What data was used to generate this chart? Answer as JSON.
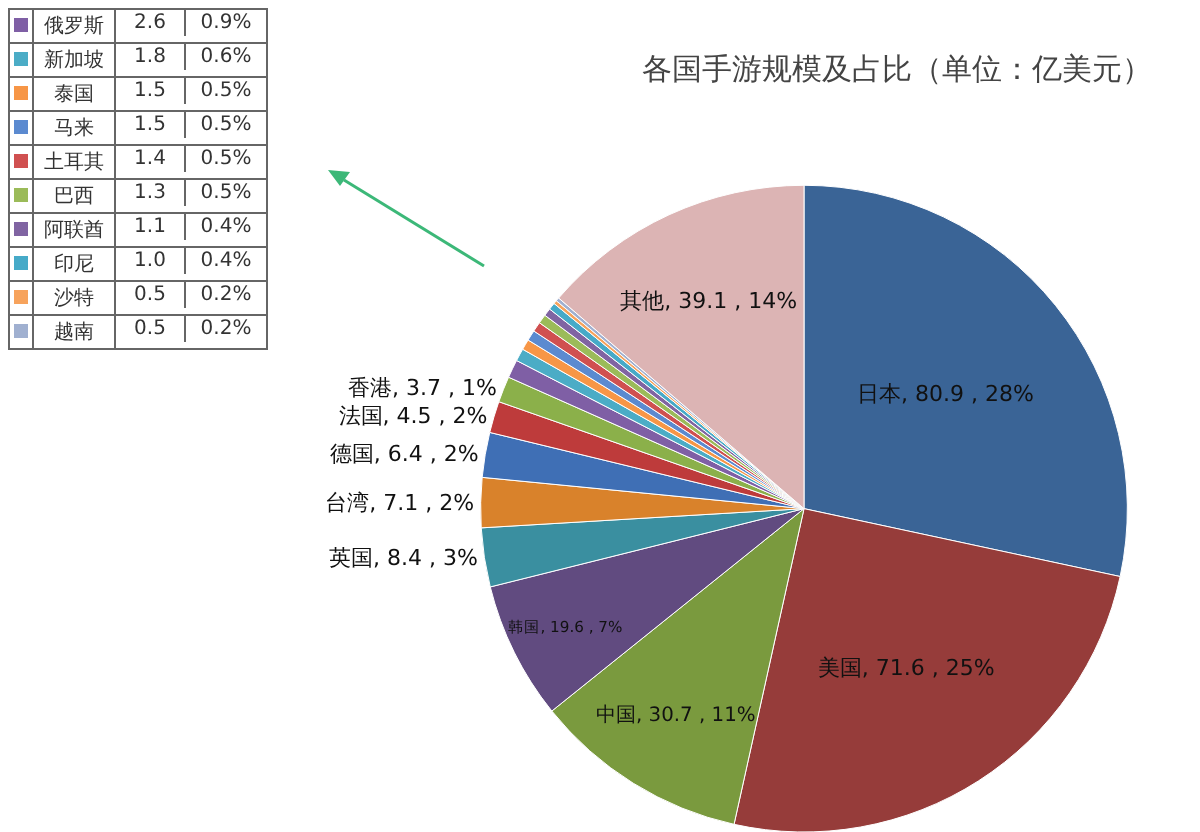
{
  "chart_data": {
    "type": "pie",
    "legend": "top left",
    "title": "各国手游规模及占比（单位：亿美元）",
    "categories": [
      "日本",
      "美国",
      "中国",
      "韩国",
      "英国",
      "台湾",
      "德国",
      "法国",
      "香港",
      "俄罗斯",
      "新加坡",
      "泰国",
      "马来",
      "土耳其",
      "巴西",
      "阿联酋",
      "印尼",
      "沙特",
      "越南",
      "其他"
    ],
    "values": [
      80.9,
      71.6,
      30.7,
      19.6,
      8.4,
      7.1,
      6.4,
      4.5,
      3.7,
      2.6,
      1.8,
      1.5,
      1.5,
      1.4,
      1.3,
      1.1,
      1.0,
      0.5,
      0.5,
      39.1
    ],
    "colors": [
      "#3a6496",
      "#963c3a",
      "#7a9a3e",
      "#614b80",
      "#3a8fa0",
      "#d9822b",
      "#3f6fb5",
      "#be3b3b",
      "#8bb04a",
      "#7f5fa5",
      "#4bacc6",
      "#f79646",
      "#5b8ad0",
      "#d05050",
      "#9bbb59",
      "#8064a2",
      "#46aac8",
      "#f7a35c",
      "#a0b0d0",
      "#dcb4b4"
    ],
    "value_labels": [
      "80.9 , 28%",
      "71.6 , 25%",
      "30.7 , 11%",
      "19.6 , 7%",
      "8.4 , 3%",
      "7.1 , 2%",
      "6.4 , 2%",
      "4.5 , 2%",
      "3.7 , 1%",
      "2.6 0.9%",
      "1.8 0.6%",
      "1.5 0.5%",
      "1.5 0.5%",
      "1.4 0.5%",
      "1.3 0.5%",
      "1.1 0.4%",
      "1.0 0.4%",
      "0.5 0.2%",
      "0.5 0.2%",
      "39.1 , 14%"
    ]
  }
}
